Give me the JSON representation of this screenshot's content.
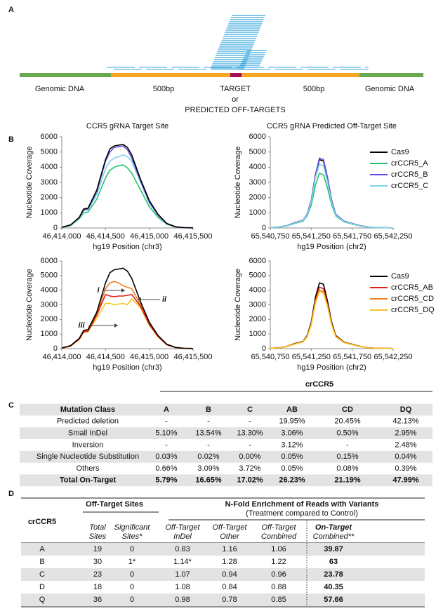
{
  "panel_a": {
    "label": "A",
    "labels": [
      "Genomic DNA",
      "500bp",
      "TARGET",
      "500bp",
      "Genomic DNA"
    ],
    "or": "or",
    "sub": "PREDICTED OFF-TARGETS"
  },
  "panel_b": {
    "label": "B"
  },
  "chart_data": [
    {
      "type": "line",
      "title": "CCR5 gRNA Target Site",
      "ylabel": "Nucleotide Coverage",
      "xlabel": "hg19 Position (chr3)",
      "x": [
        46414000,
        46414100,
        46414200,
        46414250,
        46414300,
        46414400,
        46414500,
        46414550,
        46414600,
        46414650,
        46414700,
        46414750,
        46414800,
        46414900,
        46415000,
        46415100,
        46415200,
        46415300,
        46415400,
        46415500
      ],
      "xlim": [
        46414000,
        46415500
      ],
      "xticks": [
        {
          "value": 46414000,
          "label": "46,414,000"
        },
        {
          "value": 46414500,
          "label": "46,414,500"
        },
        {
          "value": 46415000,
          "label": "46,415,000"
        },
        {
          "value": 46415500,
          "label": "46,415,500"
        }
      ],
      "ylim": [
        0,
        6000
      ],
      "yticks": [
        0,
        1000,
        2000,
        3000,
        4000,
        5000,
        6000
      ],
      "series": [
        {
          "color": "#22c46a",
          "values": [
            30,
            150,
            600,
            1000,
            1050,
            1900,
            3300,
            3800,
            4000,
            4100,
            4150,
            3950,
            3600,
            2500,
            1400,
            700,
            250,
            60,
            15,
            10
          ]
        },
        {
          "color": "#7fd3ea",
          "values": [
            40,
            180,
            650,
            1150,
            1200,
            2200,
            3900,
            4400,
            4600,
            4700,
            4800,
            4700,
            4400,
            3000,
            1650,
            830,
            270,
            70,
            20,
            10
          ]
        },
        {
          "color": "#6a4ce0",
          "values": [
            40,
            200,
            680,
            1200,
            1250,
            2400,
            4400,
            5000,
            5300,
            5350,
            5400,
            5150,
            4600,
            3100,
            1700,
            850,
            280,
            70,
            20,
            10
          ]
        },
        {
          "color": "#000000",
          "values": [
            50,
            200,
            700,
            1250,
            1300,
            2500,
            4500,
            5200,
            5400,
            5450,
            5500,
            5300,
            4800,
            3200,
            1800,
            900,
            300,
            80,
            20,
            10
          ]
        }
      ]
    },
    {
      "type": "line",
      "title": "CCR5 gRNA Predicted Off-Target Site",
      "ylabel": "Nucleotide Coverage",
      "xlabel": "hg19 Position (chr2)",
      "x": [
        65540750,
        65540850,
        65540950,
        65541050,
        65541150,
        65541200,
        65541250,
        65541300,
        65541350,
        65541400,
        65541450,
        65541500,
        65541550,
        65541650,
        65541750,
        65541850,
        65541950,
        65542050,
        65542250
      ],
      "xlim": [
        65540750,
        65542250
      ],
      "xticks": [
        {
          "value": 65540750,
          "label": "65,540,750"
        },
        {
          "value": 65541250,
          "label": "65,541,250"
        },
        {
          "value": 65541750,
          "label": "65,541,750"
        },
        {
          "value": 65542250,
          "label": "65,542,250"
        }
      ],
      "ylim": [
        0,
        6000
      ],
      "yticks": [
        0,
        1000,
        2000,
        3000,
        4000,
        5000,
        6000
      ],
      "legend": "right",
      "series": [
        {
          "name": "Cas9",
          "color": "#000000",
          "values": [
            20,
            60,
            150,
            350,
            500,
            900,
            1800,
            3500,
            4500,
            4400,
            3200,
            1800,
            900,
            450,
            300,
            150,
            60,
            30,
            10
          ]
        },
        {
          "name": "crCCR5_A",
          "color": "#22c46a",
          "values": [
            20,
            50,
            130,
            300,
            450,
            800,
            1500,
            2800,
            3600,
            3500,
            2600,
            1500,
            800,
            400,
            260,
            130,
            50,
            25,
            10
          ]
        },
        {
          "name": "crCCR5_B",
          "color": "#6a4ce0",
          "values": [
            20,
            60,
            150,
            340,
            500,
            900,
            1800,
            3500,
            4600,
            4500,
            3300,
            1800,
            900,
            450,
            300,
            150,
            60,
            30,
            10
          ]
        },
        {
          "name": "crCCR5_C",
          "color": "#7fd3ea",
          "values": [
            20,
            55,
            140,
            320,
            480,
            850,
            1700,
            3300,
            4200,
            4100,
            3000,
            1650,
            850,
            420,
            280,
            140,
            55,
            28,
            10
          ]
        }
      ]
    },
    {
      "type": "line",
      "ylabel": "Nucleotide Coverage",
      "xlabel": "hg19 Position (chr3)",
      "x": [
        46414000,
        46414100,
        46414200,
        46414250,
        46414300,
        46414400,
        46414500,
        46414550,
        46414600,
        46414650,
        46414700,
        46414750,
        46414800,
        46414900,
        46415000,
        46415100,
        46415200,
        46415300,
        46415400,
        46415500
      ],
      "xlim": [
        46414000,
        46415500
      ],
      "xticks": [
        {
          "value": 46414000,
          "label": "46,414,000"
        },
        {
          "value": 46414500,
          "label": "46,414,500"
        },
        {
          "value": 46415000,
          "label": "46,415,000"
        },
        {
          "value": 46415500,
          "label": "46,415,500"
        }
      ],
      "ylim": [
        0,
        6000
      ],
      "yticks": [
        0,
        1000,
        2000,
        3000,
        4000,
        5000,
        6000
      ],
      "series": [
        {
          "color": "#f7c520",
          "values": [
            35,
            170,
            620,
            1100,
            1150,
            2100,
            3100,
            3100,
            3000,
            3050,
            3100,
            3000,
            3400,
            2800,
            1600,
            800,
            260,
            65,
            18,
            10
          ]
        },
        {
          "color": "#f07f1c",
          "values": [
            40,
            190,
            670,
            1200,
            1250,
            2400,
            4100,
            4500,
            4600,
            4500,
            4300,
            4200,
            4100,
            3000,
            1700,
            850,
            280,
            70,
            20,
            10
          ]
        },
        {
          "color": "#e0201a",
          "values": [
            40,
            180,
            650,
            1150,
            1200,
            2300,
            3700,
            3600,
            3550,
            3600,
            3600,
            3650,
            3700,
            2900,
            1650,
            830,
            270,
            70,
            20,
            10
          ]
        },
        {
          "color": "#000000",
          "values": [
            50,
            200,
            700,
            1250,
            1300,
            2500,
            4500,
            5200,
            5400,
            5450,
            5500,
            5300,
            4800,
            3200,
            1800,
            900,
            300,
            80,
            20,
            10
          ]
        }
      ],
      "annotations": [
        {
          "text": "i",
          "color": "#f07f1c"
        },
        {
          "text": "ii",
          "color": "#e0201a"
        },
        {
          "text": "iii",
          "color": "#f7c520"
        }
      ]
    },
    {
      "type": "line",
      "ylabel": "Nucleotide Coverage",
      "xlabel": "hg19 Position (chr2)",
      "x": [
        65540750,
        65540850,
        65540950,
        65541050,
        65541150,
        65541200,
        65541250,
        65541300,
        65541350,
        65541400,
        65541450,
        65541500,
        65541550,
        65541650,
        65541750,
        65541850,
        65541950,
        65542050,
        65542250
      ],
      "xlim": [
        65540750,
        65542250
      ],
      "xticks": [
        {
          "value": 65540750,
          "label": "65,540,750"
        },
        {
          "value": 65541250,
          "label": "65,541,250"
        },
        {
          "value": 65541750,
          "label": "65,541,750"
        },
        {
          "value": 65542250,
          "label": "65,542,250"
        }
      ],
      "ylim": [
        0,
        6000
      ],
      "yticks": [
        0,
        1000,
        2000,
        3000,
        4000,
        5000,
        6000
      ],
      "legend": "right",
      "series": [
        {
          "name": "Cas9",
          "color": "#000000",
          "values": [
            20,
            60,
            150,
            350,
            500,
            900,
            1800,
            3500,
            4500,
            4400,
            3200,
            1800,
            900,
            450,
            300,
            150,
            60,
            30,
            10
          ]
        },
        {
          "name": "crCCR5_AB",
          "color": "#e0201a",
          "values": [
            20,
            55,
            145,
            330,
            480,
            850,
            1700,
            3300,
            4200,
            4100,
            3000,
            1700,
            850,
            430,
            290,
            140,
            55,
            28,
            10
          ]
        },
        {
          "name": "crCCR5_CD",
          "color": "#f07f1c",
          "values": [
            20,
            55,
            140,
            320,
            470,
            830,
            1650,
            3200,
            4000,
            3900,
            2900,
            1650,
            830,
            420,
            280,
            140,
            55,
            28,
            10
          ]
        },
        {
          "name": "crCCR5_DQ",
          "color": "#f7c520",
          "values": [
            20,
            50,
            135,
            310,
            460,
            810,
            1600,
            3100,
            3900,
            3800,
            2850,
            1600,
            810,
            410,
            270,
            135,
            50,
            25,
            10
          ]
        }
      ]
    }
  ],
  "panel_c": {
    "label": "C",
    "group": "crCCR5",
    "columns": [
      "Mutation Class",
      "A",
      "B",
      "C",
      "AB",
      "CD",
      "DQ"
    ],
    "rows": [
      [
        "Predicted deletion",
        "-",
        "-",
        "-",
        "19.95%",
        "20.45%",
        "42.13%"
      ],
      [
        "Small InDel",
        "5.10%",
        "13.54%",
        "13.30%",
        "3.06%",
        "0.50%",
        "2.95%"
      ],
      [
        "Inversion",
        "-",
        "-",
        "-",
        "3.12%",
        "-",
        "2.48%"
      ],
      [
        "Single Nucleotide Substitution",
        "0.03%",
        "0.02%",
        "0.00%",
        "0.05%",
        "0.15%",
        "0.04%"
      ],
      [
        "Others",
        "0.66%",
        "3.09%",
        "3.72%",
        "0.05%",
        "0.08%",
        "0.39%"
      ],
      [
        "Total On-Target",
        "5.79%",
        "16.65%",
        "17.02%",
        "26.23%",
        "21.19%",
        "47.99%"
      ]
    ]
  },
  "panel_d": {
    "label": "D",
    "row_header": "crCCR5",
    "title_left": "Off-Target Sites",
    "title_right": "N-Fold Enrichment of Reads with Variants",
    "subtitle_right": "(Treatment compared to Control)",
    "columns": [
      [
        "Total",
        "Sites"
      ],
      [
        "Significant",
        "Sites*"
      ],
      [
        "Off-Target",
        "InDel"
      ],
      [
        "Off-Target",
        "Other"
      ],
      [
        "Off-Target",
        "Combined"
      ],
      [
        "On-Target",
        "Combined**"
      ]
    ],
    "rows": [
      [
        "A",
        "19",
        "0",
        "0.83",
        "1.16",
        "1.06",
        "39.87"
      ],
      [
        "B",
        "30",
        "1*",
        "1.14*",
        "1.28",
        "1.22",
        "63"
      ],
      [
        "C",
        "23",
        "0",
        "1.07",
        "0.94",
        "0.96",
        "23.78"
      ],
      [
        "D",
        "18",
        "0",
        "1.08",
        "0.84",
        "0.88",
        "40.35"
      ],
      [
        "Q",
        "36",
        "0",
        "0.98",
        "0.78",
        "0.85",
        "57.66"
      ]
    ]
  }
}
